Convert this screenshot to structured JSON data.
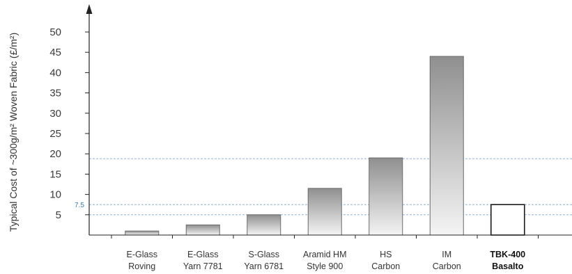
{
  "chart_data": {
    "type": "bar",
    "title": "",
    "xlabel": "",
    "ylabel": "Typical Cost of ~300g/m² Woven Fabric (£/m²)",
    "ylim": [
      0,
      50
    ],
    "yticks": [
      5,
      10,
      15,
      20,
      25,
      30,
      35,
      40,
      45,
      50
    ],
    "categories": [
      [
        "E-Glass",
        "Roving"
      ],
      [
        "E-Glass",
        "Yarn 7781"
      ],
      [
        "S-Glass",
        "Yarn 6781"
      ],
      [
        "Aramid HM",
        "Style 900"
      ],
      [
        "HS",
        "Carbon"
      ],
      [
        "IM",
        "Carbon"
      ],
      [
        "TBK-400",
        "Basalto"
      ]
    ],
    "values": [
      1,
      2.5,
      5,
      11.5,
      19,
      44,
      7.5
    ],
    "highlight_index": 6,
    "reference_lines": [
      {
        "value": 18.8,
        "label": ""
      },
      {
        "value": 7.5,
        "label": "7.5"
      },
      {
        "value": 5,
        "label": ""
      }
    ],
    "grid": false,
    "colors": {
      "bar_dark": "#8f8f8f",
      "bar_light": "#f4f4f4",
      "bar_stroke": "#6a6a6a",
      "highlight_stroke": "#1a1a1a",
      "reference_line": "#7fa8cf",
      "axis": "#222222"
    }
  }
}
